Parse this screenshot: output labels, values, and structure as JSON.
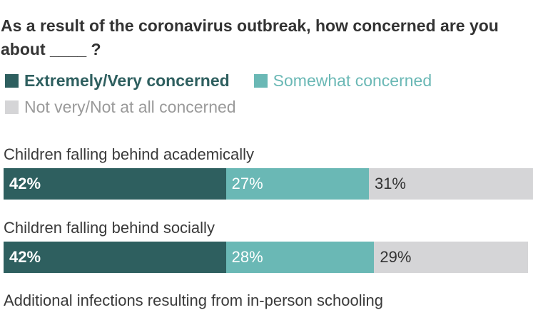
{
  "chart_data": {
    "type": "bar",
    "orientation": "horizontal",
    "stacked": true,
    "title": "As a result of the coronavirus outbreak, how concerned are you about ____ ?",
    "legend_placement": "top",
    "categories": [
      "Children falling behind academically",
      "Children falling behind socially",
      "Additional infections resulting from in-person schooling"
    ],
    "series": [
      {
        "name": "Extremely/Very concerned",
        "color": "#2e5f5f",
        "values": [
          42,
          42,
          null
        ],
        "labels": [
          "42%",
          "42%",
          ""
        ]
      },
      {
        "name": "Somewhat concerned",
        "color": "#6ab8b5",
        "values": [
          27,
          28,
          null
        ],
        "labels": [
          "27%",
          "28%",
          ""
        ]
      },
      {
        "name": "Not very/Not at all concerned",
        "color": "#d5d5d7",
        "values": [
          31,
          29,
          null
        ],
        "labels": [
          "31%",
          "29%",
          ""
        ]
      }
    ],
    "xlim": [
      0,
      100
    ],
    "grid": false
  }
}
